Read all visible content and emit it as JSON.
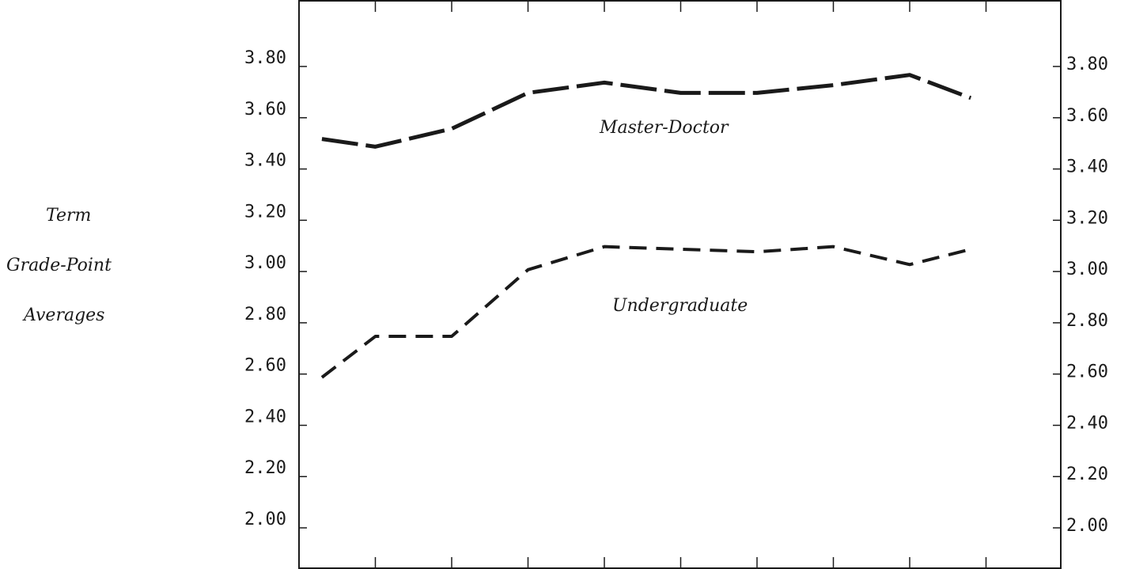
{
  "chart_data": {
    "type": "line",
    "ylabel_lines": [
      "Term",
      "Grade-Point",
      "Averages"
    ],
    "xlabel": "",
    "ylim": [
      1.8,
      4.0
    ],
    "y_ticks": [
      "2.00",
      "2.20",
      "2.40",
      "2.60",
      "2.80",
      "3.00",
      "3.20",
      "3.40",
      "3.60",
      "3.80"
    ],
    "x_tick_count": 10,
    "grid": false,
    "series": [
      {
        "name": "Master-Doctor",
        "line_style": "long-dash",
        "x": [
          0.3,
          1,
          2,
          3,
          4,
          5,
          6,
          7,
          8,
          8.8
        ],
        "values": [
          3.48,
          3.45,
          3.52,
          3.66,
          3.7,
          3.66,
          3.66,
          3.69,
          3.73,
          3.64
        ]
      },
      {
        "name": "Undergraduate",
        "line_style": "short-dash",
        "x": [
          0.3,
          1,
          2,
          3,
          4,
          5,
          6,
          7,
          8,
          8.8
        ],
        "values": [
          2.55,
          2.71,
          2.71,
          2.97,
          3.06,
          3.05,
          3.04,
          3.06,
          2.99,
          3.05
        ]
      }
    ],
    "color": "#1a1a1a"
  }
}
